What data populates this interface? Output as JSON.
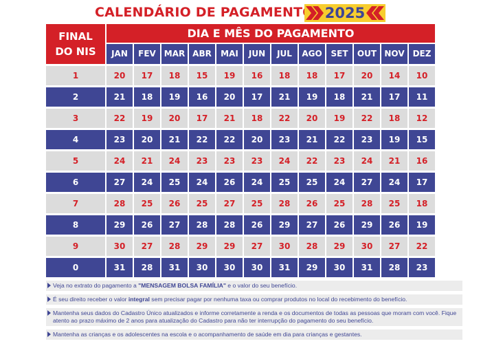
{
  "title": "CALENDÁRIO DE PAGAMENTO",
  "year": "2025",
  "colors": {
    "red": "#d42027",
    "blue": "#3f4694",
    "yellow": "#f7cd2e",
    "gray": "#dcdcdc"
  },
  "header": {
    "final_nis_line1": "FINAL",
    "final_nis_line2": "DO NIS",
    "dia_mes": "DIA E MÊS DO PAGAMENTO"
  },
  "months": [
    "JAN",
    "FEV",
    "MAR",
    "ABR",
    "MAI",
    "JUN",
    "JUL",
    "AGO",
    "SET",
    "OUT",
    "NOV",
    "DEZ"
  ],
  "rows": [
    {
      "nis": "1",
      "days": [
        "20",
        "17",
        "18",
        "15",
        "19",
        "16",
        "18",
        "18",
        "17",
        "20",
        "14",
        "10"
      ]
    },
    {
      "nis": "2",
      "days": [
        "21",
        "18",
        "19",
        "16",
        "20",
        "17",
        "21",
        "19",
        "18",
        "21",
        "17",
        "11"
      ]
    },
    {
      "nis": "3",
      "days": [
        "22",
        "19",
        "20",
        "17",
        "21",
        "18",
        "22",
        "20",
        "19",
        "22",
        "18",
        "12"
      ]
    },
    {
      "nis": "4",
      "days": [
        "23",
        "20",
        "21",
        "22",
        "22",
        "20",
        "23",
        "21",
        "22",
        "23",
        "19",
        "15"
      ]
    },
    {
      "nis": "5",
      "days": [
        "24",
        "21",
        "24",
        "23",
        "23",
        "23",
        "24",
        "22",
        "23",
        "24",
        "21",
        "16"
      ]
    },
    {
      "nis": "6",
      "days": [
        "27",
        "24",
        "25",
        "24",
        "26",
        "24",
        "25",
        "25",
        "24",
        "27",
        "24",
        "17"
      ]
    },
    {
      "nis": "7",
      "days": [
        "28",
        "25",
        "26",
        "25",
        "27",
        "25",
        "28",
        "26",
        "25",
        "28",
        "25",
        "18"
      ]
    },
    {
      "nis": "8",
      "days": [
        "29",
        "26",
        "27",
        "28",
        "28",
        "26",
        "29",
        "27",
        "26",
        "29",
        "26",
        "19"
      ]
    },
    {
      "nis": "9",
      "days": [
        "30",
        "27",
        "28",
        "29",
        "29",
        "27",
        "30",
        "28",
        "29",
        "30",
        "27",
        "22"
      ]
    },
    {
      "nis": "0",
      "days": [
        "31",
        "28",
        "31",
        "30",
        "30",
        "30",
        "31",
        "29",
        "30",
        "31",
        "28",
        "23"
      ]
    }
  ],
  "notes": {
    "n1_a": "Veja no extrato do pagamento a ",
    "n1_b": "\"MENSAGEM BOLSA FAMÍLIA\"",
    "n1_c": " e o valor do seu benefício.",
    "n2_a": "É seu direito receber o valor ",
    "n2_b": "integral",
    "n2_c": " sem precisar pagar por nenhuma taxa ou comprar produtos no local do recebimento do benefício.",
    "n3": "Mantenha seus dados do Cadastro Único atualizados e informe corretamente a renda e os documentos de todas as pessoas que moram com você. Fique atento ao prazo máximo de 2 anos para atualização do Cadastro para não ter interrupção do pagamento do seu benefício.",
    "n4": "Mantenha as crianças e os adolescentes na escola e o acompanhamento de saúde em dia para crianças e gestantes."
  }
}
